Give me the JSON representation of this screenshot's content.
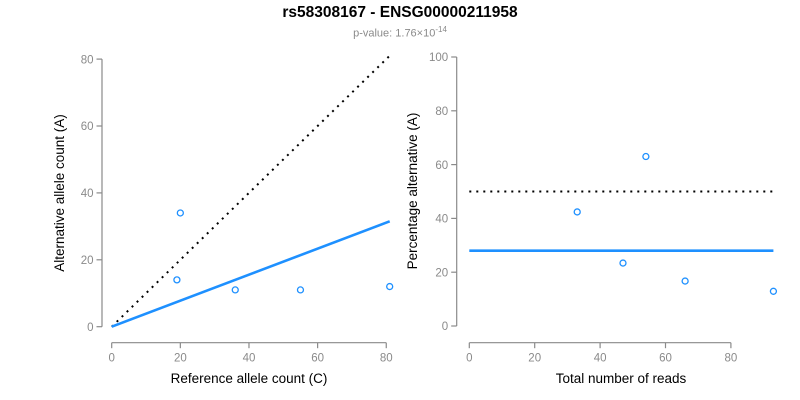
{
  "header": {
    "title": "rs58308167 - ENSG00000211958",
    "subtitle_prefix": "p-value: 1.76×10",
    "subtitle_exponent": "-14"
  },
  "colors": {
    "accent_blue": "#1E90FF",
    "line_black": "#000000",
    "axis_gray": "#8A8A8A",
    "label_black": "#000000"
  },
  "chart_data": [
    {
      "type": "scatter",
      "title": "rs58308167 - ENSG00000211958",
      "subtitle": "p-value: 1.76×10^-14",
      "xlabel": "Reference allele count (C)",
      "ylabel": "Alternative allele count (A)",
      "xlim": [
        0,
        84
      ],
      "ylim": [
        0,
        80
      ],
      "xticks": [
        0,
        20,
        40,
        60,
        80
      ],
      "yticks": [
        0,
        20,
        40,
        60,
        80
      ],
      "grid": false,
      "legend": false,
      "points": [
        [
          20,
          34
        ],
        [
          19,
          14
        ],
        [
          36,
          11
        ],
        [
          55,
          11
        ],
        [
          81,
          12
        ]
      ],
      "lines": [
        {
          "name": "identity-line",
          "style": "dotted",
          "color": "#000000",
          "x1": 0,
          "y1": 0,
          "x2": 81,
          "y2": 81
        },
        {
          "name": "fit-line",
          "style": "solid",
          "color": "#1E90FF",
          "x1": 0,
          "y1": 0,
          "x2": 81,
          "y2": 31.5
        }
      ]
    },
    {
      "type": "scatter",
      "xlabel": "Total number of reads",
      "ylabel": "Percentage alternative (A)",
      "xlim": [
        0,
        93
      ],
      "ylim": [
        0,
        100
      ],
      "xticks": [
        0,
        20,
        40,
        60,
        80
      ],
      "yticks": [
        0,
        20,
        40,
        60,
        80,
        100
      ],
      "grid": false,
      "legend": false,
      "points": [
        [
          54,
          63
        ],
        [
          33,
          42.4
        ],
        [
          47,
          23.4
        ],
        [
          66,
          16.7
        ],
        [
          93,
          12.9
        ]
      ],
      "lines": [
        {
          "name": "fifty-percent-line",
          "style": "dotted",
          "color": "#000000",
          "x1": 0,
          "y1": 50,
          "x2": 93,
          "y2": 50
        },
        {
          "name": "overall-percentage-line",
          "style": "solid",
          "color": "#1E90FF",
          "x1": 0,
          "y1": 28,
          "x2": 93,
          "y2": 28
        }
      ]
    }
  ]
}
